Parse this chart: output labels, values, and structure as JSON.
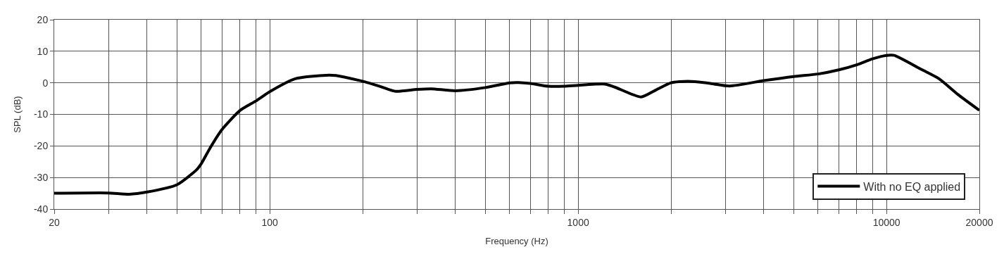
{
  "chart_data": {
    "type": "line",
    "xlabel": "Frequency (Hz)",
    "ylabel": "SPL (dB)",
    "log": "x",
    "grid": true,
    "legend": "bottom right",
    "marker": "none",
    "line_style": "solid",
    "xlim": [
      20,
      20000
    ],
    "xticks": [
      20,
      {
        "value": 30,
        "label": null
      },
      {
        "value": 40,
        "label": null
      },
      {
        "value": 50,
        "label": null
      },
      {
        "value": 60,
        "label": null
      },
      {
        "value": 70,
        "label": null
      },
      {
        "value": 80,
        "label": null
      },
      {
        "value": 90,
        "label": null
      },
      100,
      {
        "value": 200,
        "label": null
      },
      {
        "value": 300,
        "label": null
      },
      {
        "value": 400,
        "label": null
      },
      {
        "value": 500,
        "label": null
      },
      {
        "value": 600,
        "label": null
      },
      {
        "value": 700,
        "label": null
      },
      {
        "value": 800,
        "label": null
      },
      {
        "value": 900,
        "label": null
      },
      1000,
      {
        "value": 2000,
        "label": null
      },
      {
        "value": 3000,
        "label": null
      },
      {
        "value": 4000,
        "label": null
      },
      {
        "value": 5000,
        "label": null
      },
      {
        "value": 6000,
        "label": null
      },
      {
        "value": 7000,
        "label": null
      },
      {
        "value": 8000,
        "label": null
      },
      {
        "value": 9000,
        "label": null
      },
      10000,
      20000
    ],
    "ylim": [
      -40,
      20
    ],
    "yticks": [
      -40,
      -30,
      -20,
      -10,
      0,
      10,
      20
    ],
    "series": [
      {
        "name": "With no EQ applied",
        "color": "#000000",
        "x": [
          20,
          30,
          35,
          40,
          50,
          58,
          60,
          64,
          70,
          80,
          90,
          100,
          121,
          152,
          164,
          200,
          229,
          256,
          300,
          334,
          400,
          500,
          600,
          640,
          700,
          800,
          900,
          1000,
          1220,
          1310,
          1600,
          1770,
          2000,
          2270,
          2610,
          3100,
          4000,
          5000,
          6000,
          7000,
          8000,
          9000,
          10000,
          10600,
          13000,
          14800,
          17000,
          20000
        ],
        "values": [
          -35.0,
          -34.9,
          -35.3,
          -34.6,
          -32.3,
          -27.5,
          -25.6,
          -20.7,
          -14.8,
          -8.8,
          -5.8,
          -2.8,
          1.3,
          2.4,
          2.3,
          0.5,
          -1.2,
          -2.7,
          -2.1,
          -1.9,
          -2.5,
          -1.5,
          0,
          0.1,
          -0.2,
          -1.1,
          -1.1,
          -0.8,
          -0.4,
          -1.3,
          -4.5,
          -2.5,
          0,
          0.5,
          0,
          -1.0,
          0.7,
          2.0,
          2.8,
          4.1,
          5.7,
          7.6,
          8.7,
          8.7,
          4.2,
          1.3,
          -3.6,
          -8.7
        ]
      }
    ]
  }
}
